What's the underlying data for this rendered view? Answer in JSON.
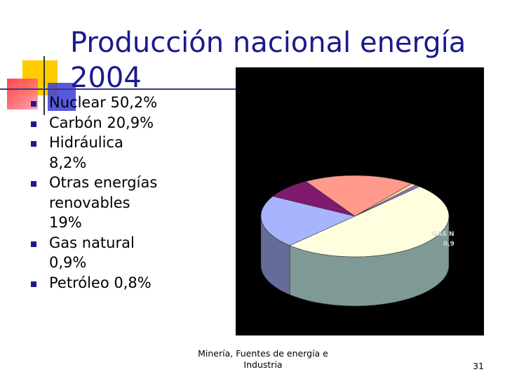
{
  "title": {
    "line1": "Producción nacional energía",
    "line2": "2004"
  },
  "bullets": [
    {
      "lines": [
        "Nuclear 50,2%"
      ]
    },
    {
      "lines": [
        "Carbón 20,9%"
      ]
    },
    {
      "lines": [
        "Hidráulica",
        "8,2%"
      ]
    },
    {
      "lines": [
        "Otras energías",
        "renovables",
        "19%"
      ]
    },
    {
      "lines": [
        "Gas natural",
        "0,9%"
      ]
    },
    {
      "lines": [
        "Petróleo 0,8%"
      ]
    }
  ],
  "chart_data": {
    "type": "pie",
    "labels": [
      "Nuclear",
      "Carbón",
      "Hidráulica",
      "Otras energías renovables",
      "Gas natural",
      "Petróleo"
    ],
    "values": [
      50.2,
      20.9,
      8.2,
      19,
      0.9,
      0.8
    ],
    "colors": [
      "#ffffe0",
      "#a9b4ff",
      "#7f1a6e",
      "#ff9a8c",
      "#ffe2b0",
      "#9a72c8"
    ],
    "visible_label": {
      "line1": "GAS N",
      "line2": "0,9"
    }
  },
  "footer": {
    "line1": "Minería, Fuentes de energía e",
    "line2": "Industria"
  },
  "page_number": "31",
  "colors": {
    "title": "#1a1a8c",
    "bullet": "#1a1a8c",
    "chart_background": "#000000"
  }
}
